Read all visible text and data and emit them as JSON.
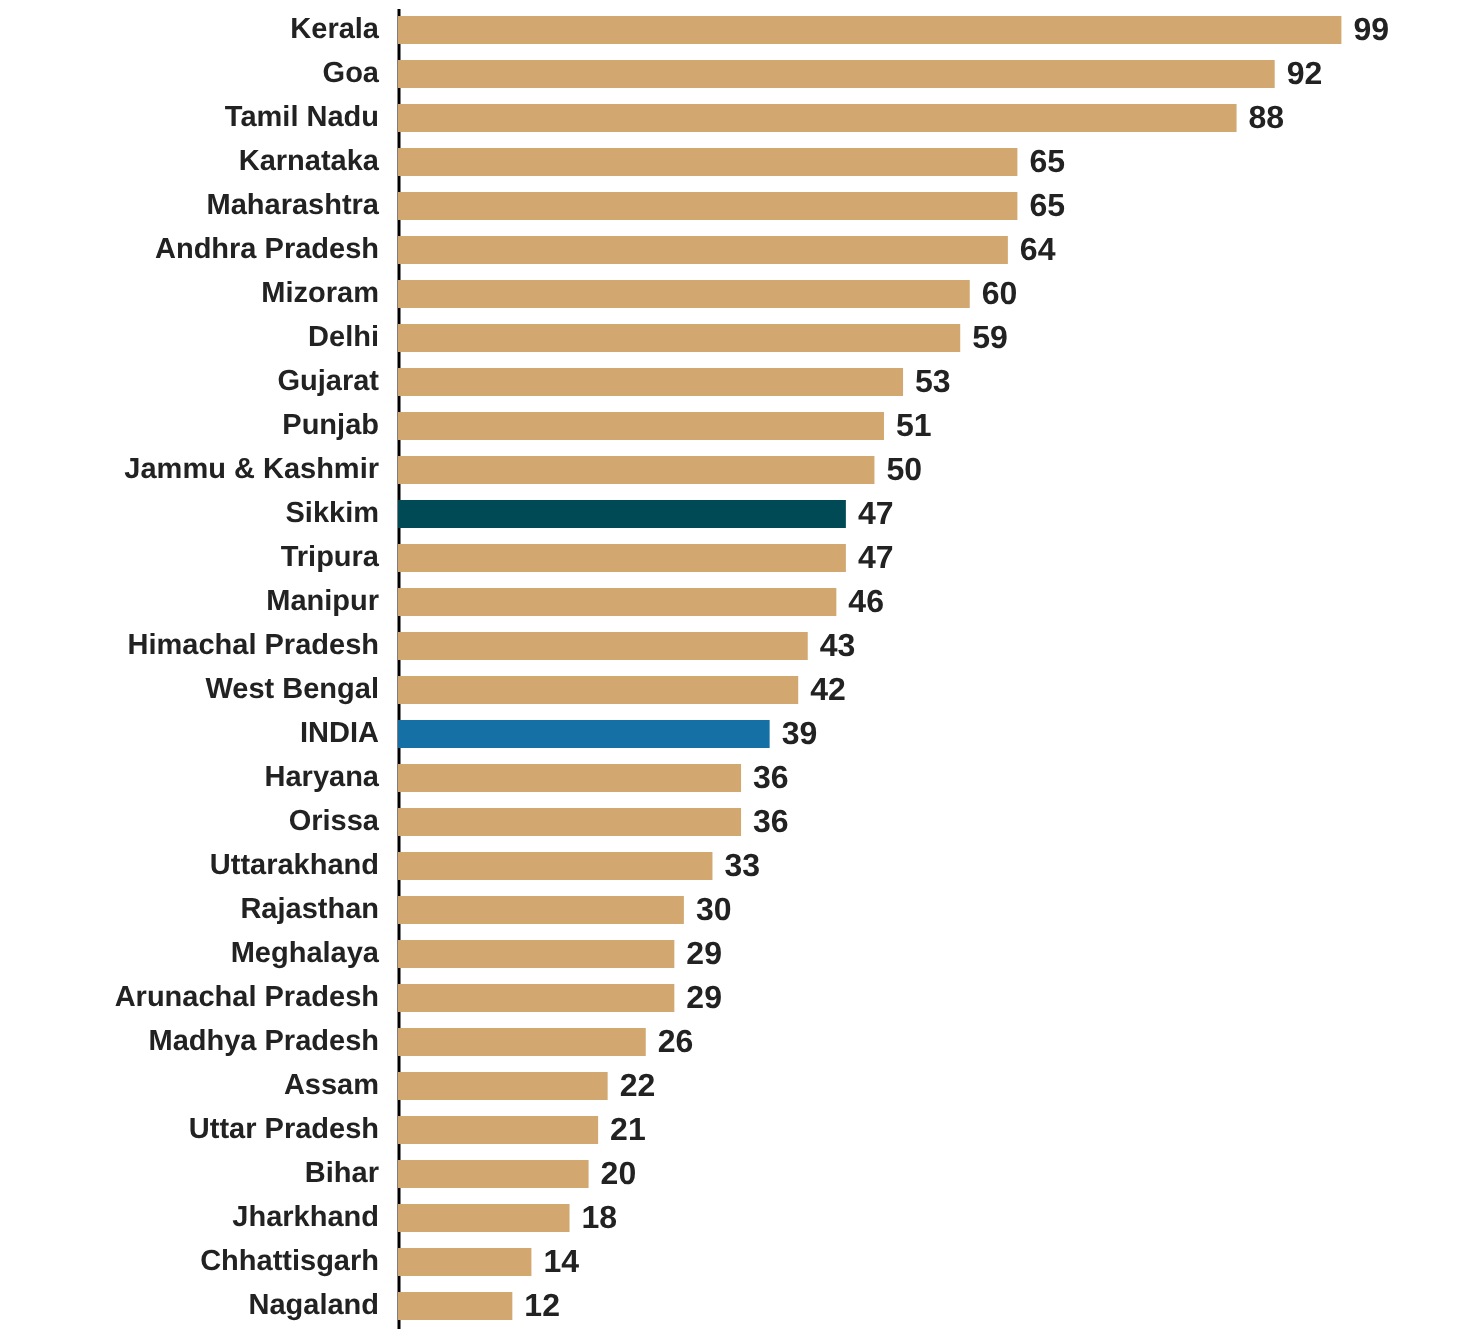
{
  "chart_data": {
    "type": "bar",
    "orientation": "horizontal",
    "data_labels": true,
    "categories": [
      "Kerala",
      "Goa",
      "Tamil Nadu",
      "Karnataka",
      "Maharashtra",
      "Andhra Pradesh",
      "Mizoram",
      "Delhi",
      "Gujarat",
      "Punjab",
      "Jammu & Kashmir",
      "Sikkim",
      "Tripura",
      "Manipur",
      "Himachal Pradesh",
      "West Bengal",
      "INDIA",
      "Haryana",
      "Orissa",
      "Uttarakhand",
      "Rajasthan",
      "Meghalaya",
      "Arunachal Pradesh",
      "Madhya Pradesh",
      "Assam",
      "Uttar Pradesh",
      "Bihar",
      "Jharkhand",
      "Chhattisgarh",
      "Nagaland"
    ],
    "values": [
      99,
      92,
      88,
      65,
      65,
      64,
      60,
      59,
      53,
      51,
      50,
      47,
      47,
      46,
      43,
      42,
      39,
      36,
      36,
      33,
      30,
      29,
      29,
      26,
      22,
      21,
      20,
      18,
      14,
      12
    ],
    "colors": [
      "#d2a870",
      "#d2a870",
      "#d2a870",
      "#d2a870",
      "#d2a870",
      "#d2a870",
      "#d2a870",
      "#d2a870",
      "#d2a870",
      "#d2a870",
      "#d2a870",
      "#004a55",
      "#d2a870",
      "#d2a870",
      "#d2a870",
      "#d2a870",
      "#1570a6",
      "#d2a870",
      "#d2a870",
      "#d2a870",
      "#d2a870",
      "#d2a870",
      "#d2a870",
      "#d2a870",
      "#d2a870",
      "#d2a870",
      "#d2a870",
      "#d2a870",
      "#d2a870",
      "#d2a870"
    ]
  }
}
